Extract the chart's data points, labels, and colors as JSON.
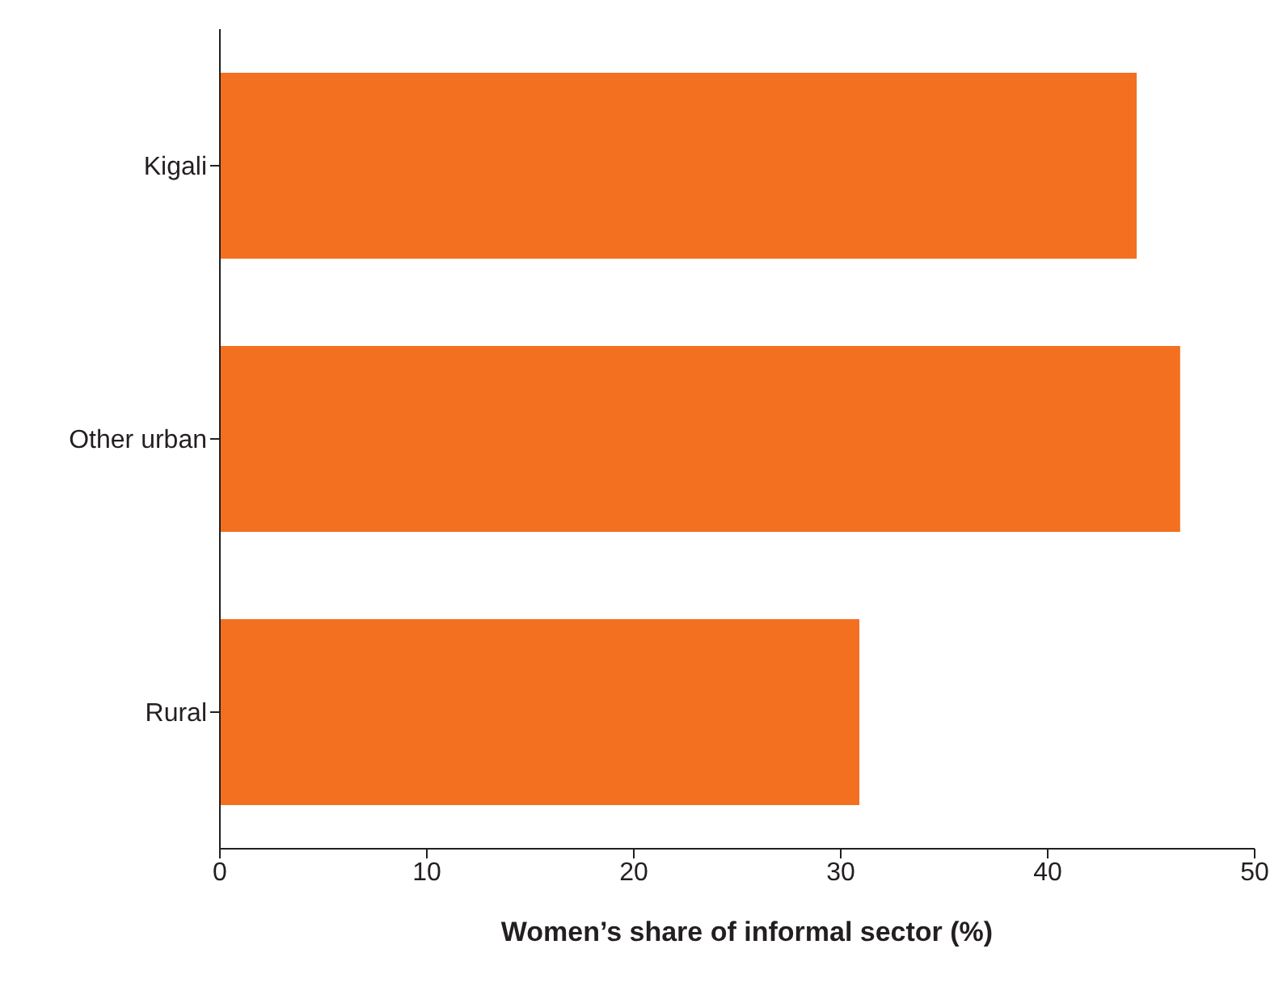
{
  "chart_data": {
    "type": "bar",
    "orientation": "horizontal",
    "categories": [
      "Kigali",
      "Other urban",
      "Rural"
    ],
    "values": [
      44.3,
      46.4,
      30.9
    ],
    "color": "#f37021",
    "xlabel": "Women’s share of informal sector (%)",
    "xlim": [
      0,
      50
    ],
    "xticks": [
      0,
      10,
      20,
      30,
      40,
      50
    ],
    "grid": false,
    "legend": false
  }
}
